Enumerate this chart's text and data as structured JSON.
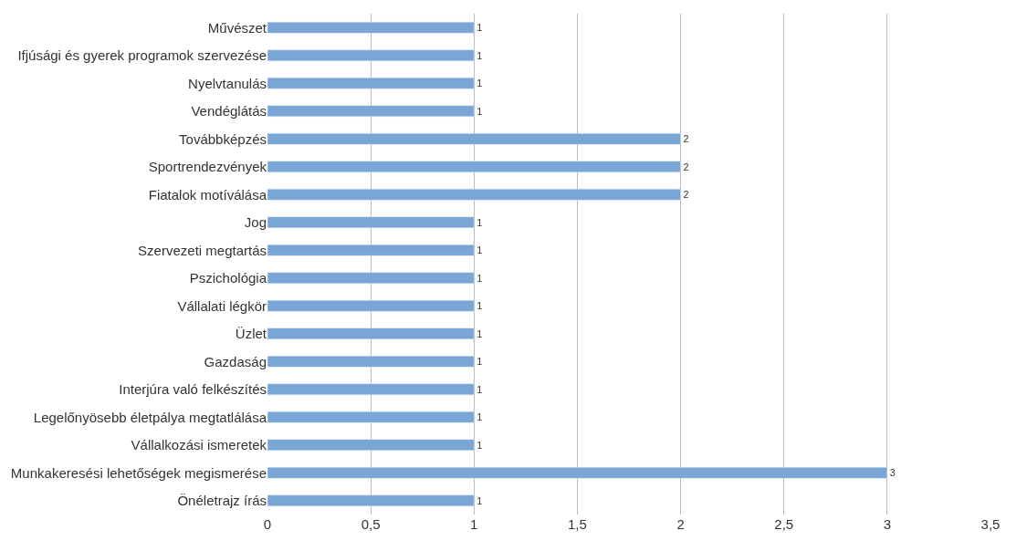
{
  "chart_data": {
    "type": "bar",
    "orientation": "horizontal",
    "categories": [
      "Művészet",
      "Ifjúsági és gyerek programok szervezése",
      "Nyelvtanulás",
      "Vendéglátás",
      "Továbbképzés",
      "Sportrendezvények",
      "Fiatalok motíválása",
      "Jog",
      "Szervezeti megtartás",
      "Pszichológia",
      "Vállalati légkör",
      "Üzlet",
      "Gazdaság",
      "Interjúra való felkészítés",
      "Legelőnyösebb életpálya megtatlálása",
      "Vállalkozási ismeretek",
      "Munkakeresési lehetőségek megismerése",
      "Önéletrajz írás"
    ],
    "values": [
      1,
      1,
      1,
      1,
      2,
      2,
      2,
      1,
      1,
      1,
      1,
      1,
      1,
      1,
      1,
      1,
      3,
      1
    ],
    "color": "#7aa6d6",
    "xlim": [
      0,
      3.5
    ],
    "xticks": [
      0,
      {
        "value": 0.5,
        "label": "0,5"
      },
      1,
      {
        "value": 1.5,
        "label": "1,5"
      },
      2,
      {
        "value": 2.5,
        "label": "2,5"
      },
      3,
      {
        "value": 3.5,
        "label": "3,5"
      }
    ],
    "grid": "x",
    "data_labels": true
  }
}
